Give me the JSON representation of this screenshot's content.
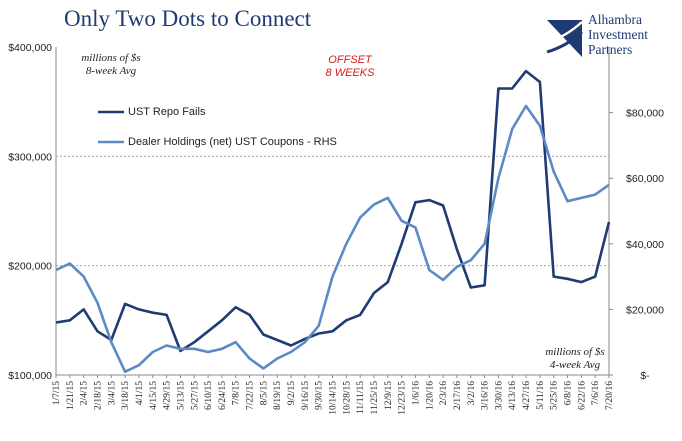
{
  "title": "Only Two Dots to Connect",
  "logo": {
    "line1": "Alhambra",
    "line2": "Investment",
    "line3": "Partners"
  },
  "notes": {
    "left_unit_line1": "millions of $s",
    "left_unit_line2": "8-week Avg",
    "right_unit_line1": "millions of $s",
    "right_unit_line2": "4-week Avg",
    "offset_line1": "OFFSET",
    "offset_line2": "8 WEEKS"
  },
  "chart_data": {
    "type": "line",
    "title": "Only Two Dots to Connect",
    "x": [
      "1/7/15",
      "1/21/15",
      "2/4/15",
      "2/18/15",
      "3/4/15",
      "3/18/15",
      "4/1/15",
      "4/15/15",
      "4/29/15",
      "5/13/15",
      "5/27/15",
      "6/10/15",
      "6/24/15",
      "7/8/15",
      "7/22/15",
      "8/5/15",
      "8/19/15",
      "9/2/15",
      "9/16/15",
      "9/30/15",
      "10/14/15",
      "10/28/15",
      "11/11/15",
      "11/25/15",
      "12/9/15",
      "12/23/15",
      "1/6/16",
      "1/20/16",
      "2/3/16",
      "2/17/16",
      "3/2/16",
      "3/16/16",
      "3/30/16",
      "4/13/16",
      "4/27/16",
      "5/11/16",
      "5/25/16",
      "6/8/16",
      "6/22/16",
      "7/6/16",
      "7/20/16"
    ],
    "x_tick_labels": [
      "1/7/15",
      "1/21/15",
      "2/4/15",
      "2/18/15",
      "3/4/15",
      "3/18/15",
      "4/1/15",
      "4/15/15",
      "4/29/15",
      "5/13/15",
      "5/27/15",
      "6/10/15",
      "6/24/15",
      "7/8/15",
      "7/22/15",
      "8/5/15",
      "8/19/15",
      "9/2/15",
      "9/16/15",
      "9/30/15",
      "10/14/15",
      "10/28/15",
      "11/11/15",
      "11/25/15",
      "12/9/15",
      "12/23/15",
      "1/6/16",
      "1/20/16",
      "2/3/16",
      "2/17/16",
      "3/2/16",
      "3/16/16",
      "3/30/16",
      "4/13/16",
      "4/27/16",
      "5/11/16",
      "5/25/16",
      "6/8/16",
      "6/22/16",
      "7/6/16",
      "7/20/16"
    ],
    "y_left_ticks": [
      "$100,000",
      "$200,000",
      "$300,000",
      "$400,000"
    ],
    "y_right_ticks": [
      "$-",
      "$20,000",
      "$40,000",
      "$60,000",
      "$80,000"
    ],
    "ylim_left": [
      100000,
      400000
    ],
    "ylim_right": [
      0,
      100000
    ],
    "grid": "horizontal dashed",
    "series": [
      {
        "name": "UST Repo Fails",
        "color": "#1f3b73",
        "axis": "left",
        "values": [
          148000,
          150000,
          160000,
          140000,
          132000,
          165000,
          160000,
          157000,
          155000,
          122000,
          130000,
          140000,
          150000,
          162000,
          155000,
          137000,
          132000,
          127000,
          133000,
          138000,
          140000,
          150000,
          155000,
          175000,
          185000,
          220000,
          258000,
          260000,
          255000,
          215000,
          180000,
          182000,
          362000,
          362000,
          378000,
          368000,
          190000,
          188000,
          185000,
          190000,
          240000
        ]
      },
      {
        "name": "Dealer Holdings (net) UST Coupons - RHS",
        "color": "#5b8ac5",
        "axis": "right",
        "values": [
          32000,
          34000,
          30000,
          22000,
          10000,
          1000,
          3000,
          7000,
          9000,
          8000,
          8000,
          7000,
          8000,
          10000,
          5000,
          2000,
          5000,
          7000,
          10000,
          15000,
          30000,
          40000,
          48000,
          52000,
          54000,
          47000,
          45000,
          32000,
          29000,
          33000,
          35000,
          40000,
          60000,
          75000,
          82000,
          76000,
          62000,
          53000,
          54000,
          55000,
          58000
        ]
      }
    ]
  }
}
